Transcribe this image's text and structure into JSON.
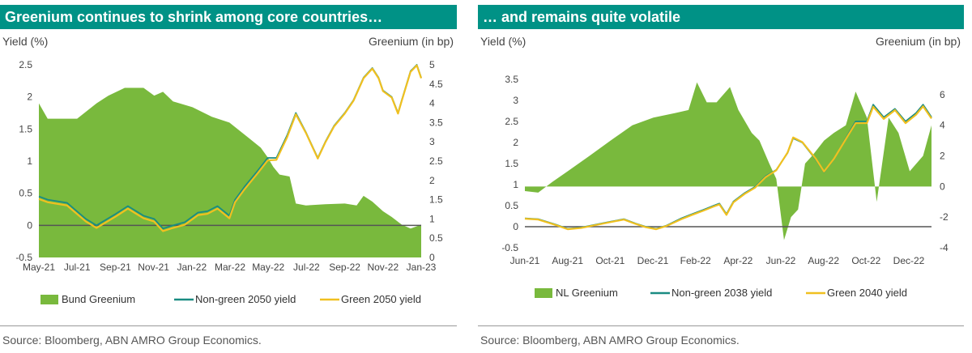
{
  "colors": {
    "title_bg": "#009286",
    "greenium": "#79b93d",
    "non_green": "#1a8c82",
    "green_yield": "#f0c020",
    "zero_line": "#555555"
  },
  "left": {
    "title": "Greenium continues to shrink among core countries…",
    "ylabel_left": "Yield (%)",
    "ylabel_right": "Greenium (in bp)",
    "source": "Source: Bloomberg, ABN AMRO Group Economics."
  },
  "right": {
    "title": "… and remains quite volatile",
    "ylabel_left": "Yield (%)",
    "ylabel_right": "Greenium (in bp)",
    "source": "Source: Bloomberg, ABN AMRO Group Economics."
  },
  "chart_data": [
    {
      "type": "area",
      "title": "Greenium continues to shrink among core countries…",
      "xlabel": "",
      "ylabel": "Yield (%)",
      "y2label": "Greenium (in bp)",
      "x_ticks": [
        "May-21",
        "Jul-21",
        "Sep-21",
        "Nov-21",
        "Jan-22",
        "Mar-22",
        "May-22",
        "Jul-22",
        "Sep-22",
        "Nov-22",
        "Jan-23"
      ],
      "xlim": [
        "2021-05-01",
        "2023-01-01"
      ],
      "ylim": [
        -0.5,
        2.5
      ],
      "y_ticks": [
        "-0.5",
        "0",
        "0.5",
        "1",
        "1.5",
        "2",
        "2.5"
      ],
      "y2lim": [
        0,
        5
      ],
      "y2_ticks": [
        "0",
        "0.5",
        "1",
        "1.5",
        "2",
        "2.5",
        "3",
        "3.5",
        "4",
        "4.5",
        "5"
      ],
      "legend_position": "bottom",
      "series": [
        {
          "name": "Bund Greenium",
          "kind": "area",
          "axis": "right",
          "x": [
            "2021-05-01",
            "2021-05-15",
            "2021-06-01",
            "2021-07-01",
            "2021-08-01",
            "2021-08-20",
            "2021-09-15",
            "2021-10-15",
            "2021-11-01",
            "2021-11-15",
            "2021-12-01",
            "2022-01-01",
            "2022-02-01",
            "2022-03-01",
            "2022-04-01",
            "2022-04-20",
            "2022-05-01",
            "2022-05-10",
            "2022-05-20",
            "2022-06-05",
            "2022-06-15",
            "2022-07-01",
            "2022-08-01",
            "2022-09-01",
            "2022-09-20",
            "2022-10-01",
            "2022-10-15",
            "2022-11-01",
            "2022-11-15",
            "2022-12-01",
            "2022-12-15",
            "2023-01-01"
          ],
          "values": [
            4.0,
            3.6,
            3.6,
            3.6,
            4.0,
            4.2,
            4.4,
            4.4,
            4.2,
            4.3,
            4.05,
            3.9,
            3.65,
            3.5,
            3.1,
            2.85,
            2.6,
            2.35,
            2.15,
            2.1,
            1.4,
            1.35,
            1.38,
            1.4,
            1.35,
            1.6,
            1.45,
            1.2,
            1.05,
            0.85,
            0.75,
            0.85
          ]
        },
        {
          "name": "Non-green 2050 yield",
          "kind": "line",
          "axis": "left",
          "x": [
            "2021-05-01",
            "2021-05-15",
            "2021-06-15",
            "2021-07-15",
            "2021-08-01",
            "2021-09-01",
            "2021-09-20",
            "2021-10-15",
            "2021-11-01",
            "2021-11-15",
            "2021-12-01",
            "2021-12-20",
            "2022-01-10",
            "2022-01-25",
            "2022-02-10",
            "2022-03-01",
            "2022-03-10",
            "2022-03-25",
            "2022-04-15",
            "2022-05-01",
            "2022-05-15",
            "2022-06-01",
            "2022-06-15",
            "2022-07-01",
            "2022-07-20",
            "2022-08-01",
            "2022-08-15",
            "2022-09-01",
            "2022-09-15",
            "2022-10-01",
            "2022-10-15",
            "2022-10-25",
            "2022-11-01",
            "2022-11-15",
            "2022-11-25",
            "2022-12-01",
            "2022-12-15",
            "2022-12-25",
            "2023-01-01"
          ],
          "values": [
            0.45,
            0.4,
            0.35,
            0.1,
            0.0,
            0.18,
            0.3,
            0.15,
            0.1,
            -0.05,
            0.0,
            0.05,
            0.2,
            0.22,
            0.3,
            0.15,
            0.4,
            0.6,
            0.85,
            1.05,
            1.05,
            1.4,
            1.75,
            1.45,
            1.05,
            1.3,
            1.55,
            1.75,
            1.95,
            2.3,
            2.45,
            2.3,
            2.1,
            2.0,
            1.75,
            1.95,
            2.4,
            2.5,
            2.3
          ]
        },
        {
          "name": "Green 2050 yield",
          "kind": "line",
          "axis": "left",
          "x": [
            "2021-05-01",
            "2021-05-15",
            "2021-06-15",
            "2021-07-15",
            "2021-08-01",
            "2021-09-01",
            "2021-09-20",
            "2021-10-15",
            "2021-11-01",
            "2021-11-15",
            "2021-12-01",
            "2021-12-20",
            "2022-01-10",
            "2022-01-25",
            "2022-02-10",
            "2022-03-01",
            "2022-03-10",
            "2022-03-25",
            "2022-04-15",
            "2022-05-01",
            "2022-05-15",
            "2022-06-01",
            "2022-06-15",
            "2022-07-01",
            "2022-07-20",
            "2022-08-01",
            "2022-08-15",
            "2022-09-01",
            "2022-09-15",
            "2022-10-01",
            "2022-10-15",
            "2022-10-25",
            "2022-11-01",
            "2022-11-15",
            "2022-11-25",
            "2022-12-01",
            "2022-12-15",
            "2022-12-25",
            "2023-01-01"
          ],
          "values": [
            0.41,
            0.36,
            0.31,
            0.06,
            -0.04,
            0.14,
            0.26,
            0.11,
            0.06,
            -0.09,
            -0.04,
            0.01,
            0.16,
            0.18,
            0.26,
            0.11,
            0.36,
            0.56,
            0.81,
            1.01,
            1.02,
            1.37,
            1.73,
            1.44,
            1.04,
            1.29,
            1.54,
            1.74,
            1.94,
            2.29,
            2.44,
            2.29,
            2.09,
            1.99,
            1.74,
            1.94,
            2.39,
            2.49,
            2.29
          ]
        }
      ]
    },
    {
      "type": "area",
      "title": "… and remains quite volatile",
      "xlabel": "",
      "ylabel": "Yield (%)",
      "y2label": "Greenium (in bp)",
      "x_ticks": [
        "Jun-21",
        "Aug-21",
        "Oct-21",
        "Dec-21",
        "Feb-22",
        "Apr-22",
        "Jun-22",
        "Aug-22",
        "Oct-22",
        "Dec-22"
      ],
      "xlim": [
        "2021-06-01",
        "2023-01-01"
      ],
      "ylim": [
        -0.5,
        3.5
      ],
      "y_ticks": [
        "-0.5",
        "0",
        "0.5",
        "1",
        "1.5",
        "2",
        "2.5",
        "3",
        "3.5"
      ],
      "y2lim": [
        -4,
        7
      ],
      "y2_ticks": [
        "-4",
        "-2",
        "0",
        "2",
        "4",
        "6"
      ],
      "legend_position": "bottom",
      "series": [
        {
          "name": "NL Greenium",
          "kind": "area",
          "axis": "right",
          "x": [
            "2021-06-01",
            "2021-06-20",
            "2021-07-10",
            "2021-08-01",
            "2021-09-01",
            "2021-10-01",
            "2021-11-01",
            "2021-12-01",
            "2022-01-01",
            "2022-01-20",
            "2022-02-01",
            "2022-02-15",
            "2022-03-01",
            "2022-03-20",
            "2022-04-01",
            "2022-04-20",
            "2022-05-01",
            "2022-05-15",
            "2022-05-25",
            "2022-06-05",
            "2022-06-15",
            "2022-06-25",
            "2022-07-05",
            "2022-07-15",
            "2022-08-01",
            "2022-08-15",
            "2022-09-01",
            "2022-09-15",
            "2022-10-01",
            "2022-10-15",
            "2022-11-01",
            "2022-11-15",
            "2022-12-01",
            "2022-12-20",
            "2023-01-01"
          ],
          "values": [
            -0.3,
            -0.4,
            0.3,
            1.0,
            2.0,
            3.0,
            4.0,
            4.5,
            4.8,
            5.0,
            6.8,
            5.5,
            5.5,
            6.5,
            5.0,
            3.5,
            3.0,
            1.5,
            0.5,
            -3.5,
            -2.0,
            -1.5,
            1.5,
            2.0,
            3.0,
            3.5,
            4.0,
            6.2,
            4.5,
            -1.0,
            4.5,
            3.5,
            1.0,
            2.0,
            4.0
          ]
        },
        {
          "name": "Non-green 2038 yield",
          "kind": "line",
          "axis": "left",
          "x": [
            "2021-06-01",
            "2021-06-20",
            "2021-07-15",
            "2021-08-01",
            "2021-08-20",
            "2021-09-10",
            "2021-10-01",
            "2021-10-20",
            "2021-11-05",
            "2021-11-20",
            "2021-12-05",
            "2021-12-20",
            "2022-01-10",
            "2022-01-25",
            "2022-02-10",
            "2022-02-25",
            "2022-03-05",
            "2022-03-15",
            "2022-03-25",
            "2022-04-10",
            "2022-04-25",
            "2022-05-10",
            "2022-05-25",
            "2022-06-10",
            "2022-06-18",
            "2022-07-01",
            "2022-07-20",
            "2022-08-01",
            "2022-08-15",
            "2022-09-01",
            "2022-09-15",
            "2022-10-01",
            "2022-10-10",
            "2022-10-25",
            "2022-11-10",
            "2022-11-25",
            "2022-12-10",
            "2022-12-20",
            "2023-01-01"
          ],
          "values": [
            0.2,
            0.18,
            0.05,
            -0.05,
            -0.02,
            0.05,
            0.12,
            0.18,
            0.08,
            0.0,
            -0.05,
            0.03,
            0.2,
            0.3,
            0.4,
            0.5,
            0.55,
            0.3,
            0.6,
            0.8,
            0.95,
            1.2,
            1.35,
            1.75,
            2.1,
            2.0,
            1.6,
            1.3,
            1.6,
            2.1,
            2.5,
            2.5,
            2.9,
            2.6,
            2.8,
            2.5,
            2.7,
            2.9,
            2.6
          ]
        },
        {
          "name": "Green 2040 yield",
          "kind": "line",
          "axis": "left",
          "x": [
            "2021-06-01",
            "2021-06-20",
            "2021-07-15",
            "2021-08-01",
            "2021-08-20",
            "2021-09-10",
            "2021-10-01",
            "2021-10-20",
            "2021-11-05",
            "2021-11-20",
            "2021-12-05",
            "2021-12-20",
            "2022-01-10",
            "2022-01-25",
            "2022-02-10",
            "2022-02-25",
            "2022-03-05",
            "2022-03-15",
            "2022-03-25",
            "2022-04-10",
            "2022-04-25",
            "2022-05-10",
            "2022-05-25",
            "2022-06-10",
            "2022-06-18",
            "2022-07-01",
            "2022-07-20",
            "2022-08-01",
            "2022-08-15",
            "2022-09-01",
            "2022-09-15",
            "2022-10-01",
            "2022-10-10",
            "2022-10-25",
            "2022-11-10",
            "2022-11-25",
            "2022-12-10",
            "2022-12-20",
            "2023-01-01"
          ],
          "values": [
            0.19,
            0.17,
            0.04,
            -0.06,
            -0.03,
            0.04,
            0.11,
            0.17,
            0.07,
            -0.01,
            -0.06,
            0.02,
            0.18,
            0.28,
            0.38,
            0.48,
            0.53,
            0.28,
            0.58,
            0.78,
            0.93,
            1.18,
            1.34,
            1.76,
            2.12,
            2.01,
            1.62,
            1.31,
            1.61,
            2.08,
            2.46,
            2.46,
            2.85,
            2.56,
            2.77,
            2.46,
            2.66,
            2.86,
            2.57
          ]
        }
      ]
    }
  ]
}
